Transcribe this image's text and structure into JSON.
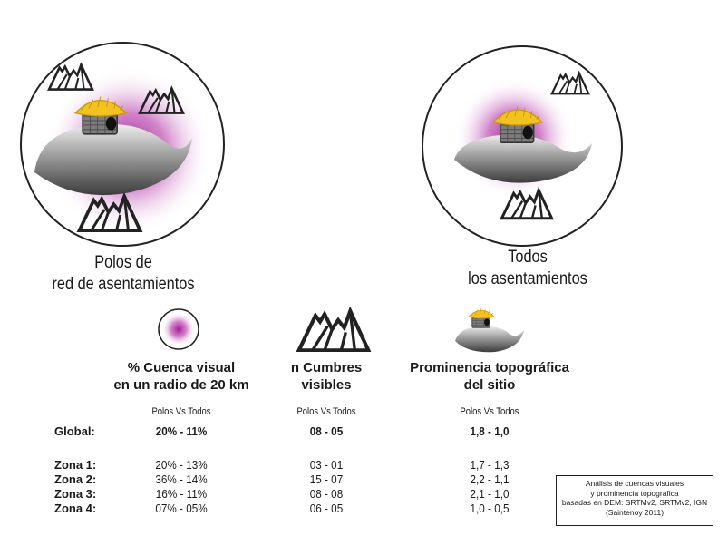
{
  "colors": {
    "glow": "#b02ba0",
    "straw": "#f2c31e",
    "hill": "#6e6e6e",
    "ink": "#222222"
  },
  "left_figure": {
    "caption_line1": "Polos de",
    "caption_line2": "red de asentamientos"
  },
  "right_figure": {
    "caption_line1": "Todos",
    "caption_line2": "los asentamientos"
  },
  "legend": {
    "col1": {
      "icon": "purple-glow-circle-icon",
      "title_line1": "% Cuenca visual",
      "title_line2": "en un radio de 20 km",
      "sub": "Polos Vs Todos"
    },
    "col2": {
      "icon": "mountain-peaks-icon",
      "title_line1": "n Cumbres",
      "title_line2": "visibles",
      "sub": "Polos Vs Todos"
    },
    "col3": {
      "icon": "hut-on-hill-icon",
      "title_line1": "Prominencia topográfica",
      "title_line2": "del sitio",
      "sub": "Polos Vs Todos"
    }
  },
  "rows": [
    {
      "label": "Global:",
      "c1": "20% - 11%",
      "c2": "08 - 05",
      "c3": "1,8 - 1,0"
    },
    {
      "label": "Zona 1:",
      "c1": "20% - 13%",
      "c2": "03 - 01",
      "c3": "1,7 - 1,3"
    },
    {
      "label": "Zona 2:",
      "c1": "36% - 14%",
      "c2": "15 - 07",
      "c3": "2,2 - 1,1"
    },
    {
      "label": "Zona 3:",
      "c1": "16% - 11%",
      "c2": "08 - 08",
      "c3": "2,1 - 1,0"
    },
    {
      "label": "Zona 4:",
      "c1": "07% - 05%",
      "c2": "06 - 05",
      "c3": "1,0 - 0,5"
    }
  ],
  "note": {
    "line1": "Análisis de cuencas visuales",
    "line2": "y prominencia topográfica",
    "line3": "basadas en DEM: SRTMv2, SRTMv2, IGN",
    "line4": "(Saintenoy 2011)"
  }
}
